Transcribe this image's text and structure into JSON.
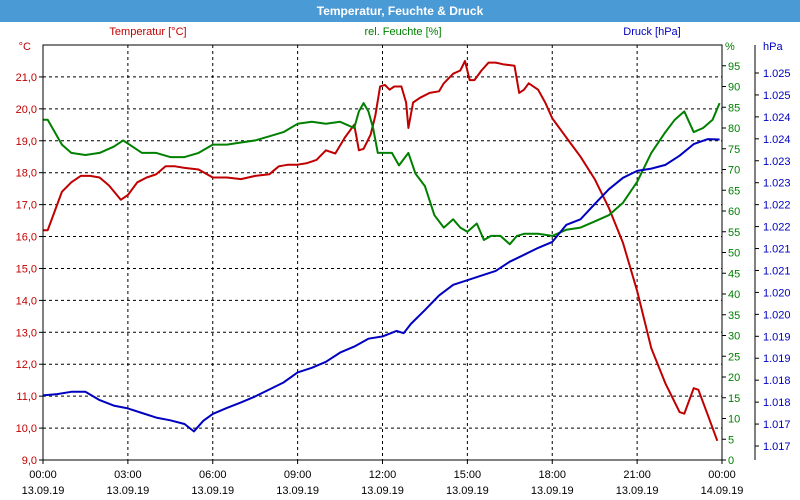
{
  "window": {
    "title": "Temperatur, Feuchte & Druck"
  },
  "chart_data": {
    "type": "line",
    "grid": true,
    "x_range": [
      "2019-09-13 00:00",
      "2019-09-14 00:00"
    ],
    "x_ticks": [
      {
        "time": "00:00",
        "date": "13.09.19"
      },
      {
        "time": "03:00",
        "date": "13.09.19"
      },
      {
        "time": "06:00",
        "date": "13.09.19"
      },
      {
        "time": "09:00",
        "date": "13.09.19"
      },
      {
        "time": "12:00",
        "date": "13.09.19"
      },
      {
        "time": "15:00",
        "date": "13.09.19"
      },
      {
        "time": "18:00",
        "date": "13.09.19"
      },
      {
        "time": "21:00",
        "date": "13.09.19"
      },
      {
        "time": "00:00",
        "date": "14.09.19"
      }
    ],
    "axes": {
      "temperature": {
        "label": "Temperatur [°C]",
        "unit": "°C",
        "color": "#c00000",
        "side": "left",
        "range": [
          9,
          22
        ],
        "ticks": [
          "9,0",
          "10,0",
          "11,0",
          "12,0",
          "13,0",
          "14,0",
          "15,0",
          "16,0",
          "17,0",
          "18,0",
          "19,0",
          "20,0",
          "21,0"
        ]
      },
      "humidity": {
        "label": "rel. Feuchte [%]",
        "unit": "%",
        "color": "#008000",
        "side": "right",
        "range": [
          0,
          100
        ],
        "ticks": [
          "0",
          "5",
          "10",
          "15",
          "20",
          "25",
          "30",
          "35",
          "40",
          "45",
          "50",
          "55",
          "60",
          "65",
          "70",
          "75",
          "80",
          "85",
          "90",
          "95"
        ]
      },
      "pressure": {
        "label": "Druck [hPa]",
        "unit": "hPa",
        "color": "#0000c0",
        "side": "right",
        "range": [
          1016.6,
          1025.6
        ],
        "ticks": [
          "1.017",
          "1.017",
          "1.018",
          "1.018",
          "1.019",
          "1.019",
          "1.020",
          "1.020",
          "1.021",
          "1.021",
          "1.022",
          "1.022",
          "1.023",
          "1.023",
          "1.024",
          "1.024",
          "1.025",
          "1.025"
        ]
      }
    },
    "series": [
      {
        "name": "Temperatur [°C]",
        "axis": "temperature",
        "color": "#c00000",
        "points": [
          [
            "2019-09-13 00:00",
            16.2
          ],
          [
            "2019-09-13 00:10",
            16.2
          ],
          [
            "2019-09-13 00:25",
            16.8
          ],
          [
            "2019-09-13 00:40",
            17.4
          ],
          [
            "2019-09-13 01:00",
            17.7
          ],
          [
            "2019-09-13 01:20",
            17.9
          ],
          [
            "2019-09-13 01:40",
            17.9
          ],
          [
            "2019-09-13 02:00",
            17.85
          ],
          [
            "2019-09-13 02:20",
            17.6
          ],
          [
            "2019-09-13 02:45",
            17.15
          ],
          [
            "2019-09-13 03:00",
            17.3
          ],
          [
            "2019-09-13 03:20",
            17.7
          ],
          [
            "2019-09-13 03:40",
            17.85
          ],
          [
            "2019-09-13 04:00",
            17.95
          ],
          [
            "2019-09-13 04:20",
            18.2
          ],
          [
            "2019-09-13 04:40",
            18.2
          ],
          [
            "2019-09-13 05:00",
            18.15
          ],
          [
            "2019-09-13 05:30",
            18.1
          ],
          [
            "2019-09-13 06:00",
            17.85
          ],
          [
            "2019-09-13 06:30",
            17.85
          ],
          [
            "2019-09-13 07:00",
            17.8
          ],
          [
            "2019-09-13 07:30",
            17.9
          ],
          [
            "2019-09-13 08:00",
            17.95
          ],
          [
            "2019-09-13 08:20",
            18.2
          ],
          [
            "2019-09-13 08:40",
            18.25
          ],
          [
            "2019-09-13 09:00",
            18.25
          ],
          [
            "2019-09-13 09:20",
            18.3
          ],
          [
            "2019-09-13 09:40",
            18.4
          ],
          [
            "2019-09-13 10:00",
            18.7
          ],
          [
            "2019-09-13 10:20",
            18.6
          ],
          [
            "2019-09-13 10:40",
            19.1
          ],
          [
            "2019-09-13 11:00",
            19.5
          ],
          [
            "2019-09-13 11:05",
            19.1
          ],
          [
            "2019-09-13 11:10",
            18.7
          ],
          [
            "2019-09-13 11:20",
            18.75
          ],
          [
            "2019-09-13 11:35",
            19.2
          ],
          [
            "2019-09-13 11:45",
            19.8
          ],
          [
            "2019-09-13 11:55",
            20.7
          ],
          [
            "2019-09-13 12:05",
            20.75
          ],
          [
            "2019-09-13 12:15",
            20.6
          ],
          [
            "2019-09-13 12:25",
            20.7
          ],
          [
            "2019-09-13 12:40",
            20.7
          ],
          [
            "2019-09-13 12:50",
            20.2
          ],
          [
            "2019-09-13 12:55",
            19.4
          ],
          [
            "2019-09-13 13:05",
            20.2
          ],
          [
            "2019-09-13 13:20",
            20.35
          ],
          [
            "2019-09-13 13:40",
            20.5
          ],
          [
            "2019-09-13 14:00",
            20.55
          ],
          [
            "2019-09-13 14:10",
            20.8
          ],
          [
            "2019-09-13 14:30",
            21.1
          ],
          [
            "2019-09-13 14:45",
            21.2
          ],
          [
            "2019-09-13 14:55",
            21.5
          ],
          [
            "2019-09-13 15:05",
            20.9
          ],
          [
            "2019-09-13 15:15",
            20.9
          ],
          [
            "2019-09-13 15:30",
            21.2
          ],
          [
            "2019-09-13 15:45",
            21.45
          ],
          [
            "2019-09-13 16:00",
            21.45
          ],
          [
            "2019-09-13 16:15",
            21.4
          ],
          [
            "2019-09-13 16:40",
            21.35
          ],
          [
            "2019-09-13 16:50",
            20.5
          ],
          [
            "2019-09-13 17:00",
            20.6
          ],
          [
            "2019-09-13 17:10",
            20.8
          ],
          [
            "2019-09-13 17:30",
            20.6
          ],
          [
            "2019-09-13 17:45",
            20.2
          ],
          [
            "2019-09-13 18:00",
            19.7
          ],
          [
            "2019-09-13 18:20",
            19.3
          ],
          [
            "2019-09-13 18:40",
            18.9
          ],
          [
            "2019-09-13 19:00",
            18.5
          ],
          [
            "2019-09-13 19:30",
            17.8
          ],
          [
            "2019-09-13 20:00",
            16.9
          ],
          [
            "2019-09-13 20:30",
            15.8
          ],
          [
            "2019-09-13 21:00",
            14.3
          ],
          [
            "2019-09-13 21:30",
            12.5
          ],
          [
            "2019-09-13 22:00",
            11.4
          ],
          [
            "2019-09-13 22:30",
            10.5
          ],
          [
            "2019-09-13 22:40",
            10.45
          ],
          [
            "2019-09-13 23:00",
            11.25
          ],
          [
            "2019-09-13 23:10",
            11.2
          ],
          [
            "2019-09-13 23:30",
            10.4
          ],
          [
            "2019-09-13 23:50",
            9.6
          ]
        ]
      },
      {
        "name": "rel. Feuchte [%]",
        "axis": "humidity",
        "color": "#008000",
        "points": [
          [
            "2019-09-13 00:00",
            82
          ],
          [
            "2019-09-13 00:10",
            82
          ],
          [
            "2019-09-13 00:20",
            80
          ],
          [
            "2019-09-13 00:40",
            76
          ],
          [
            "2019-09-13 01:00",
            74
          ],
          [
            "2019-09-13 01:30",
            73.5
          ],
          [
            "2019-09-13 02:00",
            74
          ],
          [
            "2019-09-13 02:30",
            75.5
          ],
          [
            "2019-09-13 02:50",
            77
          ],
          [
            "2019-09-13 03:10",
            75.5
          ],
          [
            "2019-09-13 03:30",
            74
          ],
          [
            "2019-09-13 04:00",
            74
          ],
          [
            "2019-09-13 04:30",
            73
          ],
          [
            "2019-09-13 05:00",
            73
          ],
          [
            "2019-09-13 05:30",
            74
          ],
          [
            "2019-09-13 06:00",
            76
          ],
          [
            "2019-09-13 06:30",
            76
          ],
          [
            "2019-09-13 07:00",
            76.5
          ],
          [
            "2019-09-13 07:30",
            77
          ],
          [
            "2019-09-13 08:00",
            78
          ],
          [
            "2019-09-13 08:30",
            79
          ],
          [
            "2019-09-13 09:00",
            81
          ],
          [
            "2019-09-13 09:30",
            81.5
          ],
          [
            "2019-09-13 10:00",
            81
          ],
          [
            "2019-09-13 10:30",
            81.5
          ],
          [
            "2019-09-13 11:00",
            80
          ],
          [
            "2019-09-13 11:10",
            84
          ],
          [
            "2019-09-13 11:20",
            86
          ],
          [
            "2019-09-13 11:30",
            84
          ],
          [
            "2019-09-13 11:40",
            80
          ],
          [
            "2019-09-13 11:50",
            74
          ],
          [
            "2019-09-13 12:00",
            74
          ],
          [
            "2019-09-13 12:20",
            74
          ],
          [
            "2019-09-13 12:35",
            71
          ],
          [
            "2019-09-13 12:55",
            74
          ],
          [
            "2019-09-13 13:10",
            69
          ],
          [
            "2019-09-13 13:30",
            66
          ],
          [
            "2019-09-13 13:50",
            59
          ],
          [
            "2019-09-13 14:10",
            56
          ],
          [
            "2019-09-13 14:30",
            58
          ],
          [
            "2019-09-13 14:45",
            56
          ],
          [
            "2019-09-13 15:00",
            55
          ],
          [
            "2019-09-13 15:20",
            57
          ],
          [
            "2019-09-13 15:35",
            53
          ],
          [
            "2019-09-13 15:50",
            54
          ],
          [
            "2019-09-13 16:10",
            54
          ],
          [
            "2019-09-13 16:30",
            52
          ],
          [
            "2019-09-13 16:45",
            54
          ],
          [
            "2019-09-13 17:00",
            54.5
          ],
          [
            "2019-09-13 17:30",
            54.5
          ],
          [
            "2019-09-13 18:00",
            54
          ],
          [
            "2019-09-13 18:30",
            55.5
          ],
          [
            "2019-09-13 19:00",
            56
          ],
          [
            "2019-09-13 19:30",
            57.5
          ],
          [
            "2019-09-13 20:00",
            59
          ],
          [
            "2019-09-13 20:30",
            62
          ],
          [
            "2019-09-13 21:00",
            67
          ],
          [
            "2019-09-13 21:30",
            74
          ],
          [
            "2019-09-13 22:00",
            79
          ],
          [
            "2019-09-13 22:20",
            82
          ],
          [
            "2019-09-13 22:40",
            84
          ],
          [
            "2019-09-13 23:00",
            79
          ],
          [
            "2019-09-13 23:20",
            80
          ],
          [
            "2019-09-13 23:40",
            82
          ],
          [
            "2019-09-13 23:55",
            86
          ]
        ]
      },
      {
        "name": "Druck [hPa]",
        "axis": "pressure",
        "color": "#0000c0",
        "points": [
          [
            "2019-09-13 00:00",
            1018.0
          ],
          [
            "2019-09-13 00:30",
            1018.03
          ],
          [
            "2019-09-13 01:00",
            1018.08
          ],
          [
            "2019-09-13 01:30",
            1018.08
          ],
          [
            "2019-09-13 02:00",
            1017.9
          ],
          [
            "2019-09-13 02:30",
            1017.78
          ],
          [
            "2019-09-13 03:00",
            1017.72
          ],
          [
            "2019-09-13 03:30",
            1017.62
          ],
          [
            "2019-09-13 04:00",
            1017.52
          ],
          [
            "2019-09-13 04:30",
            1017.46
          ],
          [
            "2019-09-13 05:00",
            1017.38
          ],
          [
            "2019-09-13 05:20",
            1017.22
          ],
          [
            "2019-09-13 05:40",
            1017.45
          ],
          [
            "2019-09-13 06:00",
            1017.6
          ],
          [
            "2019-09-13 06:30",
            1017.73
          ],
          [
            "2019-09-13 07:00",
            1017.85
          ],
          [
            "2019-09-13 07:30",
            1017.98
          ],
          [
            "2019-09-13 08:00",
            1018.13
          ],
          [
            "2019-09-13 08:30",
            1018.28
          ],
          [
            "2019-09-13 09:00",
            1018.5
          ],
          [
            "2019-09-13 09:30",
            1018.6
          ],
          [
            "2019-09-13 10:00",
            1018.73
          ],
          [
            "2019-09-13 10:30",
            1018.93
          ],
          [
            "2019-09-13 11:00",
            1019.06
          ],
          [
            "2019-09-13 11:30",
            1019.23
          ],
          [
            "2019-09-13 12:00",
            1019.28
          ],
          [
            "2019-09-13 12:30",
            1019.4
          ],
          [
            "2019-09-13 12:45",
            1019.35
          ],
          [
            "2019-09-13 13:00",
            1019.55
          ],
          [
            "2019-09-13 13:30",
            1019.85
          ],
          [
            "2019-09-13 14:00",
            1020.17
          ],
          [
            "2019-09-13 14:30",
            1020.4
          ],
          [
            "2019-09-13 15:00",
            1020.5
          ],
          [
            "2019-09-13 15:30",
            1020.6
          ],
          [
            "2019-09-13 16:00",
            1020.7
          ],
          [
            "2019-09-13 16:30",
            1020.9
          ],
          [
            "2019-09-13 17:00",
            1021.05
          ],
          [
            "2019-09-13 17:30",
            1021.2
          ],
          [
            "2019-09-13 18:00",
            1021.33
          ],
          [
            "2019-09-13 18:30",
            1021.7
          ],
          [
            "2019-09-13 19:00",
            1021.82
          ],
          [
            "2019-09-13 19:30",
            1022.15
          ],
          [
            "2019-09-13 20:00",
            1022.47
          ],
          [
            "2019-09-13 20:30",
            1022.72
          ],
          [
            "2019-09-13 21:00",
            1022.87
          ],
          [
            "2019-09-13 21:30",
            1022.92
          ],
          [
            "2019-09-13 22:00",
            1023.0
          ],
          [
            "2019-09-13 22:30",
            1023.2
          ],
          [
            "2019-09-13 23:00",
            1023.45
          ],
          [
            "2019-09-13 23:30",
            1023.56
          ],
          [
            "2019-09-13 23:55",
            1023.55
          ]
        ]
      }
    ]
  }
}
